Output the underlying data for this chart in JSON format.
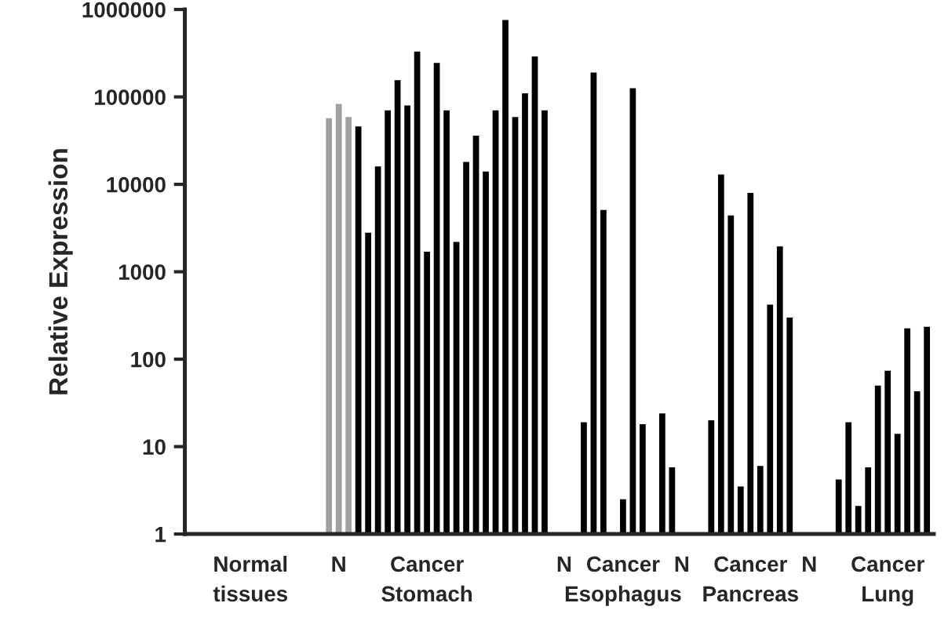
{
  "chart_data": {
    "type": "bar",
    "ylabel": "Relative Expression",
    "log": true,
    "ylim": [
      1,
      1000000
    ],
    "yticks": [
      1,
      10,
      100,
      1000,
      10000,
      100000,
      1000000
    ],
    "categories": [
      null,
      null,
      null,
      null,
      null,
      null,
      "Normal\ntissues",
      null,
      null,
      null,
      null,
      null,
      null,
      null,
      null,
      "N",
      null,
      null,
      null,
      null,
      null,
      null,
      null,
      null,
      "Cancer\nStomach",
      null,
      null,
      null,
      null,
      null,
      null,
      null,
      null,
      null,
      null,
      null,
      null,
      null,
      "N",
      null,
      null,
      null,
      null,
      null,
      "Cancer\nEsophagus",
      null,
      null,
      null,
      null,
      null,
      "N",
      null,
      null,
      null,
      null,
      null,
      null,
      "Cancer\nPancreas",
      null,
      null,
      null,
      null,
      null,
      "N",
      null,
      null,
      null,
      null,
      null,
      null,
      null,
      "Cancer\nLung",
      null,
      null,
      null,
      null
    ],
    "values": [
      1,
      1,
      1,
      1,
      1,
      1,
      1,
      1,
      1,
      1,
      1,
      1,
      1,
      1,
      57000,
      83000,
      59000,
      46000,
      2800,
      16000,
      70000,
      155000,
      80000,
      330000,
      1700,
      245000,
      70000,
      2200,
      18000,
      36000,
      14000,
      70000,
      760000,
      59000,
      110000,
      290000,
      70000,
      1,
      1,
      1,
      19,
      190000,
      5100,
      1,
      2.5,
      126000,
      18,
      1,
      24,
      5.8,
      1,
      1,
      1,
      20,
      13000,
      4400,
      3.5,
      8000,
      6,
      420,
      1950,
      300,
      1,
      1,
      1,
      1,
      4.2,
      19,
      2.1,
      5.8,
      50,
      74,
      14,
      225,
      43,
      235
    ],
    "colors": [
      "#000000",
      "#000000",
      "#000000",
      "#000000",
      "#000000",
      "#000000",
      "#000000",
      "#000000",
      "#000000",
      "#000000",
      "#000000",
      "#000000",
      "#000000",
      "#000000",
      "#a0a0a0",
      "#a0a0a0",
      "#a0a0a0",
      "#000000",
      "#000000",
      "#000000",
      "#000000",
      "#000000",
      "#000000",
      "#000000",
      "#000000",
      "#000000",
      "#000000",
      "#000000",
      "#000000",
      "#000000",
      "#000000",
      "#000000",
      "#000000",
      "#000000",
      "#000000",
      "#000000",
      "#000000",
      "#000000",
      "#000000",
      "#000000",
      "#000000",
      "#000000",
      "#000000",
      "#000000",
      "#000000",
      "#000000",
      "#000000",
      "#000000",
      "#000000",
      "#000000",
      "#000000",
      "#000000",
      "#000000",
      "#000000",
      "#000000",
      "#000000",
      "#000000",
      "#000000",
      "#000000",
      "#000000",
      "#000000",
      "#000000",
      "#000000",
      "#000000",
      "#000000",
      "#000000",
      "#000000",
      "#000000",
      "#000000",
      "#000000",
      "#000000",
      "#000000",
      "#000000",
      "#000000",
      "#000000",
      "#000000"
    ],
    "grid": false,
    "legend": false
  }
}
